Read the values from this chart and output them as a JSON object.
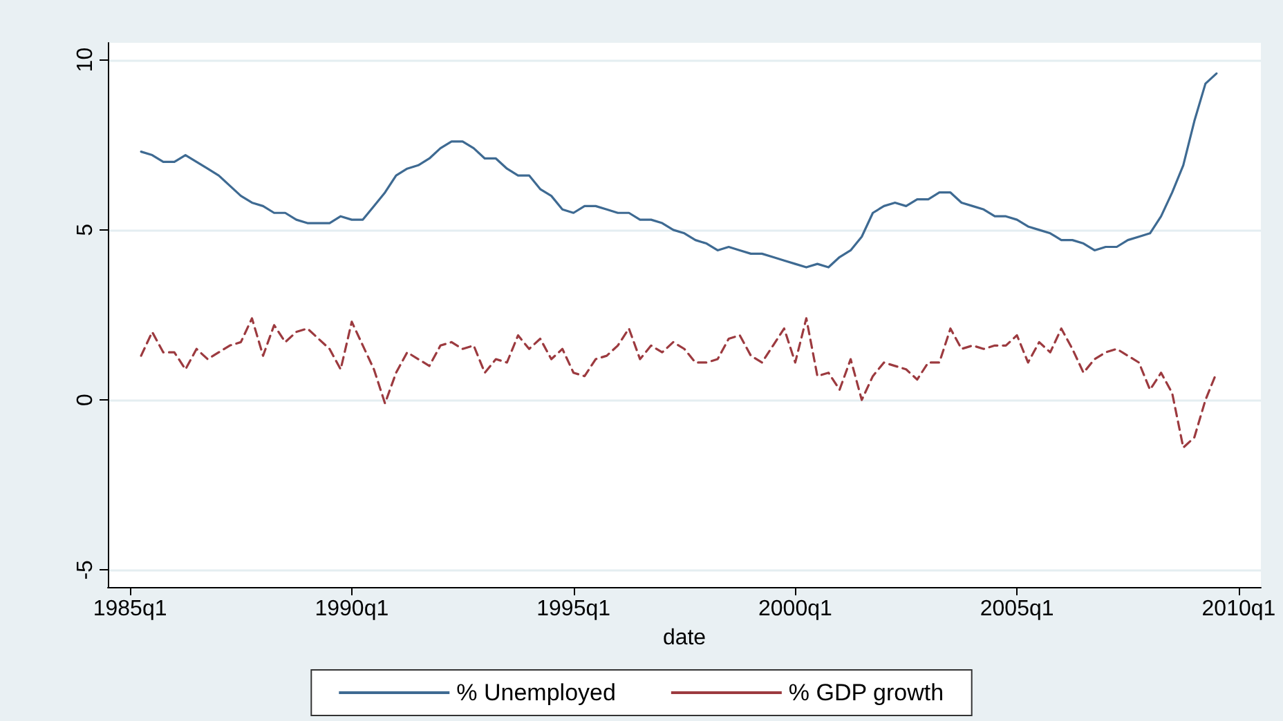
{
  "chart_data": {
    "type": "line",
    "xlabel": "date",
    "x": [
      "1985-04",
      "1985-07",
      "1985-10",
      "1986-01",
      "1986-04",
      "1986-07",
      "1986-10",
      "1987-01",
      "1987-04",
      "1987-07",
      "1987-10",
      "1988-01",
      "1988-04",
      "1988-07",
      "1988-10",
      "1989-01",
      "1989-04",
      "1989-07",
      "1989-10",
      "1990-01",
      "1990-04",
      "1990-07",
      "1990-10",
      "1991-01",
      "1991-04",
      "1991-07",
      "1991-10",
      "1992-01",
      "1992-04",
      "1992-07",
      "1992-10",
      "1993-01",
      "1993-04",
      "1993-07",
      "1993-10",
      "1994-01",
      "1994-04",
      "1994-07",
      "1994-10",
      "1995-01",
      "1995-04",
      "1995-07",
      "1995-10",
      "1996-01",
      "1996-04",
      "1996-07",
      "1996-10",
      "1997-01",
      "1997-04",
      "1997-07",
      "1997-10",
      "1998-01",
      "1998-04",
      "1998-07",
      "1998-10",
      "1999-01",
      "1999-04",
      "1999-07",
      "1999-10",
      "2000-01",
      "2000-04",
      "2000-07",
      "2000-10",
      "2001-01",
      "2001-04",
      "2001-07",
      "2001-10",
      "2002-01",
      "2002-04",
      "2002-07",
      "2002-10",
      "2003-01",
      "2003-04",
      "2003-07",
      "2003-10",
      "2004-01",
      "2004-04",
      "2004-07",
      "2004-10",
      "2005-01",
      "2005-04",
      "2005-07",
      "2005-10",
      "2006-01",
      "2006-04",
      "2006-07",
      "2006-10",
      "2007-01",
      "2007-04",
      "2007-07",
      "2007-10",
      "2008-01",
      "2008-04",
      "2008-07",
      "2008-10",
      "2009-01",
      "2009-04",
      "2009-07"
    ],
    "series": [
      {
        "name": "% Unemployed",
        "color": "#3e6a92",
        "line_style": "solid",
        "values": [
          7.3,
          7.2,
          7.0,
          7.0,
          7.2,
          7.0,
          6.8,
          6.6,
          6.3,
          6.0,
          5.8,
          5.7,
          5.5,
          5.5,
          5.3,
          5.2,
          5.2,
          5.2,
          5.4,
          5.3,
          5.3,
          5.7,
          6.1,
          6.6,
          6.8,
          6.9,
          7.1,
          7.4,
          7.6,
          7.6,
          7.4,
          7.1,
          7.1,
          6.8,
          6.6,
          6.6,
          6.2,
          6.0,
          5.6,
          5.5,
          5.7,
          5.7,
          5.6,
          5.5,
          5.5,
          5.3,
          5.3,
          5.2,
          5.0,
          4.9,
          4.7,
          4.6,
          4.4,
          4.5,
          4.4,
          4.3,
          4.3,
          4.2,
          4.1,
          4.0,
          3.9,
          4.0,
          3.9,
          4.2,
          4.4,
          4.8,
          5.5,
          5.7,
          5.8,
          5.7,
          5.9,
          5.9,
          6.1,
          6.1,
          5.8,
          5.7,
          5.6,
          5.4,
          5.4,
          5.3,
          5.1,
          5.0,
          4.9,
          4.7,
          4.7,
          4.6,
          4.4,
          4.5,
          4.5,
          4.7,
          4.8,
          4.9,
          5.4,
          6.1,
          6.9,
          8.2,
          9.3,
          9.6
        ]
      },
      {
        "name": "% GDP growth",
        "color": "#9c3a3f",
        "line_style": "dashed",
        "values": [
          1.3,
          2.0,
          1.4,
          1.4,
          0.9,
          1.5,
          1.2,
          1.4,
          1.6,
          1.7,
          2.4,
          1.3,
          2.2,
          1.7,
          2.0,
          2.1,
          1.8,
          1.5,
          0.9,
          2.3,
          1.6,
          0.9,
          -0.1,
          0.8,
          1.4,
          1.2,
          1.0,
          1.6,
          1.7,
          1.5,
          1.6,
          0.8,
          1.2,
          1.1,
          1.9,
          1.5,
          1.8,
          1.2,
          1.5,
          0.8,
          0.7,
          1.2,
          1.3,
          1.6,
          2.1,
          1.2,
          1.6,
          1.4,
          1.7,
          1.5,
          1.1,
          1.1,
          1.2,
          1.8,
          1.9,
          1.3,
          1.1,
          1.6,
          2.1,
          1.1,
          2.4,
          0.7,
          0.8,
          0.3,
          1.2,
          0.0,
          0.7,
          1.1,
          1.0,
          0.9,
          0.6,
          1.1,
          1.1,
          2.1,
          1.5,
          1.6,
          1.5,
          1.6,
          1.6,
          1.9,
          1.1,
          1.7,
          1.4,
          2.1,
          1.5,
          0.8,
          1.2,
          1.4,
          1.5,
          1.3,
          1.1,
          0.3,
          0.8,
          0.2,
          -1.4,
          -1.1,
          0.0,
          0.8
        ]
      }
    ],
    "xlim": [
      "1984-07",
      "2010-07"
    ],
    "xticks": [
      {
        "value": "1985-01",
        "label": "1985q1"
      },
      {
        "value": "1990-01",
        "label": "1990q1"
      },
      {
        "value": "1995-01",
        "label": "1995q1"
      },
      {
        "value": "2000-01",
        "label": "2000q1"
      },
      {
        "value": "2005-01",
        "label": "2005q1"
      },
      {
        "value": "2010-01",
        "label": "2010q1"
      }
    ],
    "ylim": [
      -5.5,
      10.5
    ],
    "yticks": [
      -5,
      0,
      5,
      10
    ],
    "grid": "y",
    "legend": "bottom",
    "marker": "none"
  }
}
